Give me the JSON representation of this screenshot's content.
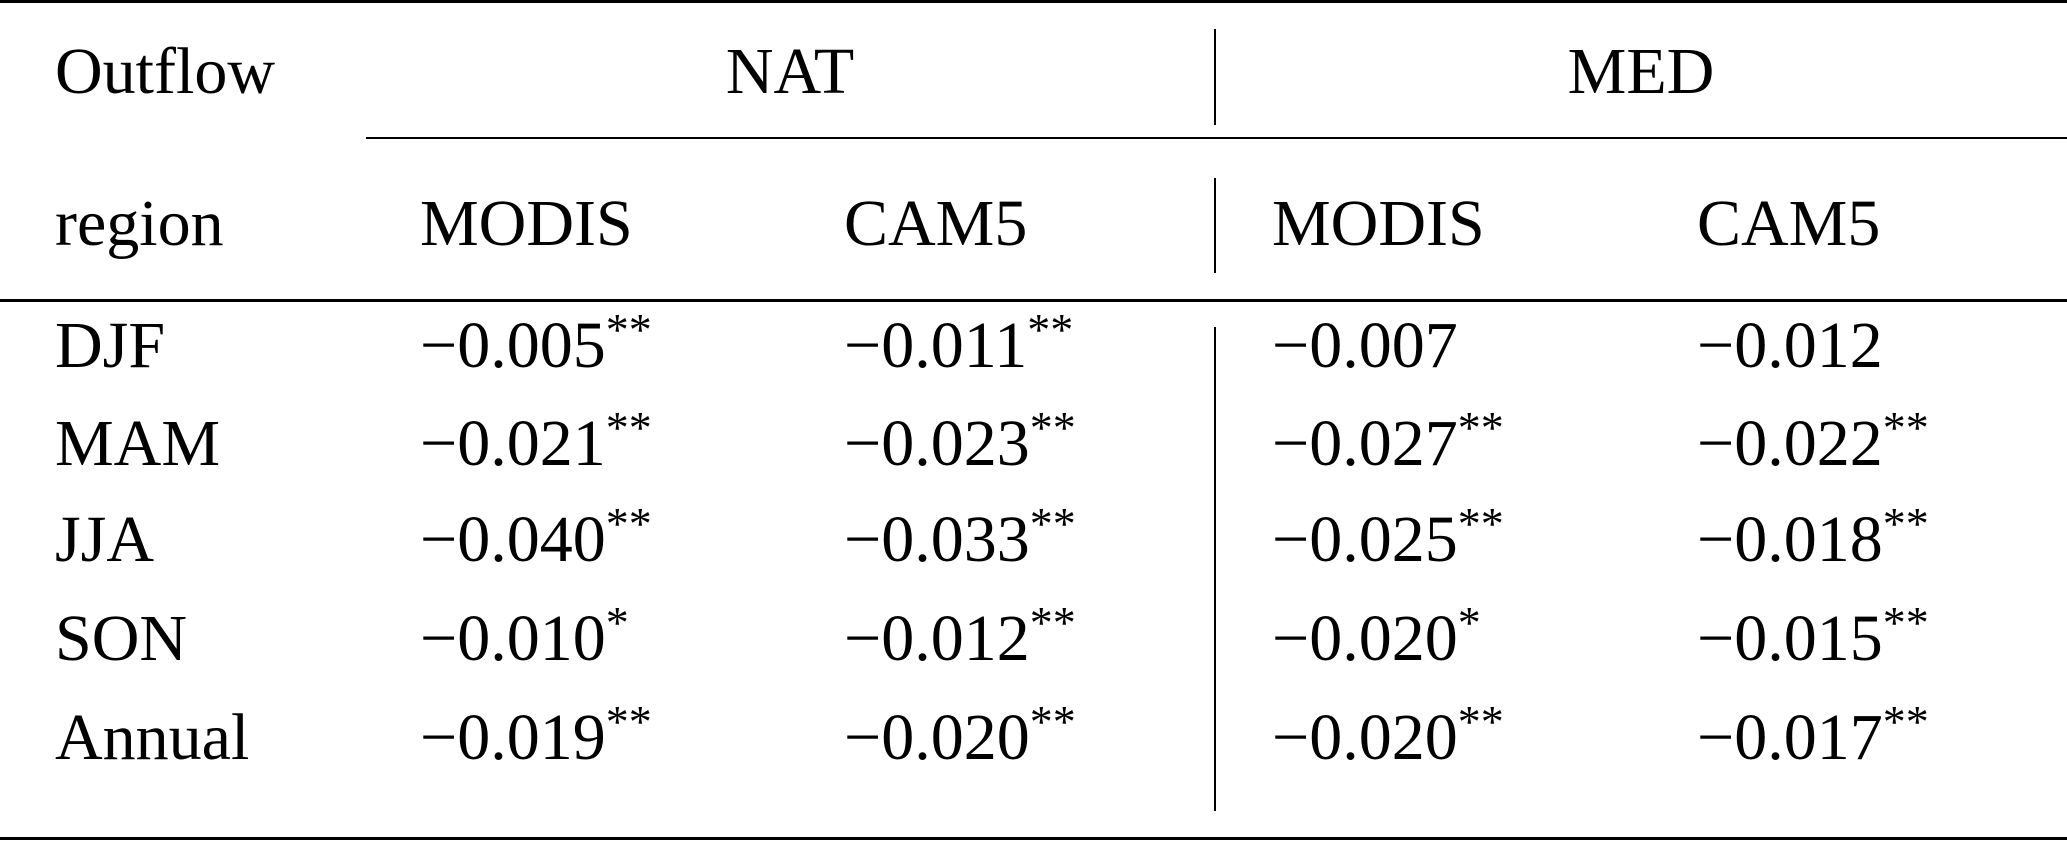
{
  "table": {
    "header": {
      "row_label_line1": "Outflow",
      "row_label_line2": "region",
      "groups": [
        "NAT",
        "MED"
      ],
      "subcolumns": [
        "MODIS",
        "CAM5",
        "MODIS",
        "CAM5"
      ]
    },
    "rows": [
      {
        "label": "DJF",
        "cells": [
          {
            "v": "−0.005",
            "sig": "**"
          },
          {
            "v": "−0.011",
            "sig": "**"
          },
          {
            "v": "−0.007",
            "sig": ""
          },
          {
            "v": "−0.012",
            "sig": ""
          }
        ]
      },
      {
        "label": "MAM",
        "cells": [
          {
            "v": "−0.021",
            "sig": "**"
          },
          {
            "v": "−0.023",
            "sig": "**"
          },
          {
            "v": "−0.027",
            "sig": "**"
          },
          {
            "v": "−0.022",
            "sig": "**"
          }
        ]
      },
      {
        "label": "JJA",
        "cells": [
          {
            "v": "−0.040",
            "sig": "**"
          },
          {
            "v": "−0.033",
            "sig": "**"
          },
          {
            "v": "−0.025",
            "sig": "**"
          },
          {
            "v": "−0.018",
            "sig": "**"
          }
        ]
      },
      {
        "label": "SON",
        "cells": [
          {
            "v": "−0.010",
            "sig": "*"
          },
          {
            "v": "−0.012",
            "sig": "**"
          },
          {
            "v": "−0.020",
            "sig": "*"
          },
          {
            "v": "−0.015",
            "sig": "**"
          }
        ]
      },
      {
        "label": "Annual",
        "cells": [
          {
            "v": "−0.019",
            "sig": "**"
          },
          {
            "v": "−0.020",
            "sig": "**"
          },
          {
            "v": "−0.020",
            "sig": "**"
          },
          {
            "v": "−0.017",
            "sig": "**"
          }
        ]
      }
    ]
  }
}
